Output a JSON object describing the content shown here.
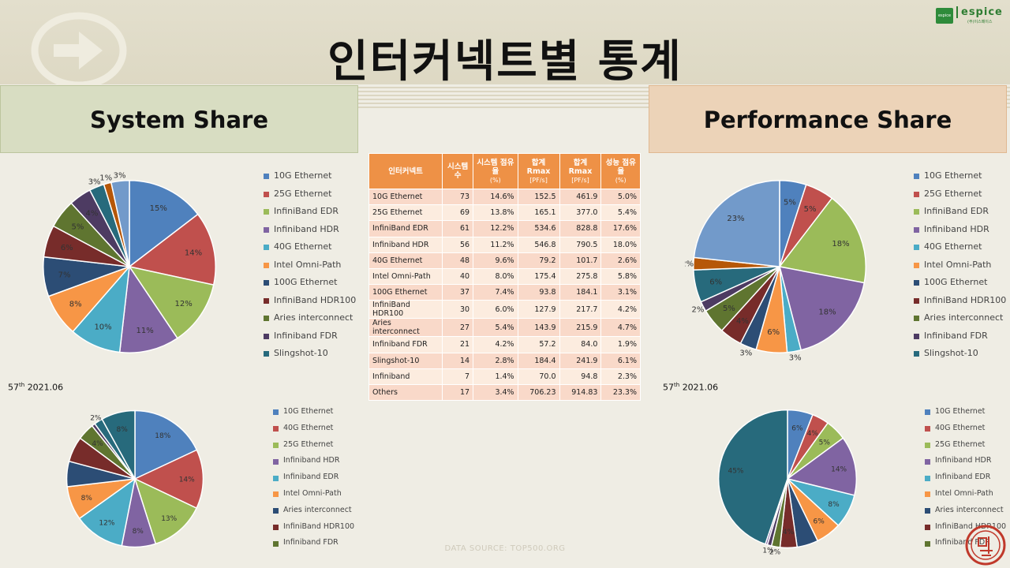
{
  "title": "인터커넥트별 통계",
  "logo": {
    "name": "espice",
    "box_text": "espice",
    "sub": "(주)이스페이스"
  },
  "sections": {
    "left": "System Share",
    "right": "Performance Share"
  },
  "source": "DATA SOURCE: TOP500.ORG",
  "date_top": {
    "edition": "57",
    "suffix": "th",
    "date": "2021.06"
  },
  "table": {
    "headers": [
      {
        "main": "인터커넥트",
        "unit": ""
      },
      {
        "main": "시스템 수",
        "unit": ""
      },
      {
        "main": "시스템 점유율",
        "unit": "(%)"
      },
      {
        "main": "합계 Rmax",
        "unit": "[PF/s]"
      },
      {
        "main": "합계 Rmax",
        "unit": "[PF/s]"
      },
      {
        "main": "성능 점유율",
        "unit": "(%)"
      }
    ],
    "rows": [
      [
        "10G Ethernet",
        "73",
        "14.6%",
        "152.5",
        "461.9",
        "5.0%"
      ],
      [
        "25G Ethernet",
        "69",
        "13.8%",
        "165.1",
        "377.0",
        "5.4%"
      ],
      [
        "InfiniBand EDR",
        "61",
        "12.2%",
        "534.6",
        "828.8",
        "17.6%"
      ],
      [
        "Infiniband HDR",
        "56",
        "11.2%",
        "546.8",
        "790.5",
        "18.0%"
      ],
      [
        "40G Ethernet",
        "48",
        "9.6%",
        "79.2",
        "101.7",
        "2.6%"
      ],
      [
        "Intel Omni-Path",
        "40",
        "8.0%",
        "175.4",
        "275.8",
        "5.8%"
      ],
      [
        "100G Ethernet",
        "37",
        "7.4%",
        "93.8",
        "184.1",
        "3.1%"
      ],
      [
        "InfiniBand HDR100",
        "30",
        "6.0%",
        "127.9",
        "217.7",
        "4.2%"
      ],
      [
        "Aries interconnect",
        "27",
        "5.4%",
        "143.9",
        "215.9",
        "4.7%"
      ],
      [
        "Infiniband FDR",
        "21",
        "4.2%",
        "57.2",
        "84.0",
        "1.9%"
      ],
      [
        "Slingshot-10",
        "14",
        "2.8%",
        "184.4",
        "241.9",
        "6.1%"
      ],
      [
        "Infiniband",
        "7",
        "1.4%",
        "70.0",
        "94.8",
        "2.3%"
      ],
      [
        "Others",
        "17",
        "3.4%",
        "706.23",
        "914.83",
        "23.3%"
      ]
    ]
  },
  "chart_data": [
    {
      "type": "pie",
      "labels": [
        "10G Ethernet",
        "25G Ethernet",
        "InfiniBand EDR",
        "Infiniband HDR",
        "40G Ethernet",
        "Intel Omni-Path",
        "100G Ethernet",
        "InfiniBand HDR100",
        "Aries interconnect",
        "Infiniband FDR",
        "Slingshot-10",
        "Infiniband",
        "Others"
      ],
      "values": [
        14.6,
        13.8,
        12.2,
        11.2,
        9.6,
        8.0,
        7.4,
        6.0,
        5.4,
        4.2,
        2.8,
        1.4,
        3.4
      ],
      "slice_labels": [
        "15%",
        "14%",
        "12%",
        "11%",
        "10%",
        "8%",
        "7%",
        "6%",
        "5%",
        "4%",
        "3%",
        "1%",
        "3%"
      ],
      "colors": [
        "#4f81bd",
        "#c0504d",
        "#9bbb59",
        "#8064a2",
        "#4bacc6",
        "#f79646",
        "#2c4d75",
        "#772c2a",
        "#5f7530",
        "#4d3b62",
        "#276a7c",
        "#b65708",
        "#729aca"
      ],
      "legend": [
        "10G Ethernet",
        "25G Ethernet",
        "InfiniBand EDR",
        "Infiniband HDR",
        "40G Ethernet",
        "Intel Omni-Path",
        "100G Ethernet",
        "InfiniBand HDR100",
        "Aries interconnect",
        "Infiniband FDR",
        "Slingshot-10"
      ]
    },
    {
      "type": "pie",
      "labels": [
        "10G Ethernet",
        "25G Ethernet",
        "InfiniBand EDR",
        "Infiniband HDR",
        "40G Ethernet",
        "Intel Omni-Path",
        "100G Ethernet",
        "InfiniBand HDR100",
        "Aries interconnect",
        "Infiniband FDR",
        "Slingshot-10",
        "Infiniband",
        "Others"
      ],
      "values": [
        5.0,
        5.4,
        17.6,
        18.0,
        2.6,
        5.8,
        3.1,
        4.2,
        4.7,
        1.9,
        6.1,
        2.3,
        23.3
      ],
      "slice_labels": [
        "5%",
        "5%",
        "18%",
        "18%",
        "3%",
        "6%",
        "3%",
        "4%",
        "5%",
        "2%",
        "6%",
        "2%",
        "23%"
      ],
      "colors": [
        "#4f81bd",
        "#c0504d",
        "#9bbb59",
        "#8064a2",
        "#4bacc6",
        "#f79646",
        "#2c4d75",
        "#772c2a",
        "#5f7530",
        "#4d3b62",
        "#276a7c",
        "#b65708",
        "#729aca"
      ],
      "legend": [
        "10G Ethernet",
        "25G Ethernet",
        "InfiniBand EDR",
        "Infiniband HDR",
        "40G Ethernet",
        "Intel Omni-Path",
        "100G Ethernet",
        "InfiniBand HDR100",
        "Aries interconnect",
        "Infiniband FDR",
        "Slingshot-10"
      ]
    },
    {
      "type": "pie",
      "labels": [
        "10G Ethernet",
        "40G Ethernet",
        "25G Ethernet",
        "Infiniband HDR",
        "Infiniband EDR",
        "Intel Omni-Path",
        "Aries interconnect",
        "InfiniBand HDR100",
        "Infiniband FDR",
        "slice 10",
        "slice 11",
        "slice 12"
      ],
      "values": [
        18,
        14,
        13,
        8,
        12,
        8,
        6,
        6,
        4,
        0.8,
        2,
        8
      ],
      "slice_labels": [
        "18%",
        "14%",
        "13%",
        "8%",
        "12%",
        "8%",
        "",
        "",
        "4%",
        "",
        "2%",
        "8%"
      ],
      "colors": [
        "#4f81bd",
        "#c0504d",
        "#9bbb59",
        "#8064a2",
        "#4bacc6",
        "#f79646",
        "#2c4d75",
        "#772c2a",
        "#5f7530",
        "#4d3b62",
        "#276a7c",
        "#276a7c"
      ],
      "legend": [
        "10G Ethernet",
        "40G Ethernet",
        "25G Ethernet",
        "Infiniband HDR",
        "Infiniband EDR",
        "Intel Omni-Path",
        "Aries interconnect",
        "InfiniBand HDR100",
        "Infiniband FDR"
      ]
    },
    {
      "type": "pie",
      "labels": [
        "10G Ethernet",
        "40G Ethernet",
        "25G Ethernet",
        "Infiniband HDR",
        "Infiniband EDR",
        "Intel Omni-Path",
        "Aries interconnect",
        "InfiniBand HDR100",
        "Infiniband FDR",
        "slice 10",
        "slice 11",
        "slice 12"
      ],
      "values": [
        6,
        4,
        5,
        14,
        8,
        6,
        5,
        4,
        2,
        1,
        0.5,
        45
      ],
      "slice_labels": [
        "6%",
        "4%",
        "5%",
        "14%",
        "8%",
        "6%",
        "",
        "4%",
        "2%",
        "1%",
        "",
        "45%"
      ],
      "colors": [
        "#4f81bd",
        "#c0504d",
        "#9bbb59",
        "#8064a2",
        "#4bacc6",
        "#f79646",
        "#2c4d75",
        "#772c2a",
        "#5f7530",
        "#4d3b62",
        "#8064a2",
        "#276a7c"
      ],
      "legend": [
        "10G Ethernet",
        "40G Ethernet",
        "25G Ethernet",
        "Infiniband HDR",
        "Infiniband EDR",
        "Intel Omni-Path",
        "Aries interconnect",
        "InfiniBand HDR100",
        "Infiniband FDR"
      ]
    }
  ]
}
